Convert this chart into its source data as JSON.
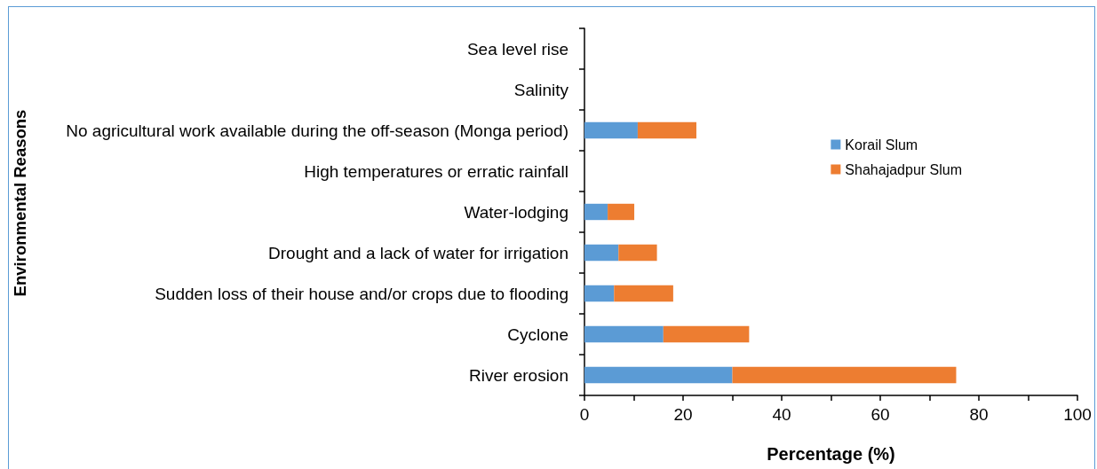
{
  "chart_data": {
    "type": "bar",
    "orientation": "horizontal",
    "stacked": true,
    "xlabel": "Percentage (%)",
    "ylabel": "Environmental Reasons",
    "categories": [
      "Sea level rise",
      "Salinity",
      "No agricultural work available during the off-season (Monga period)",
      "High temperatures or erratic rainfall",
      "Water-lodging",
      "Drought and a lack of water for irrigation",
      "Sudden loss of their house and/or crops due to flooding",
      "Cyclone",
      "River erosion"
    ],
    "series": [
      {
        "name": "Korail Slum",
        "color": "#5b9bd5",
        "values": [
          0,
          0,
          10.8,
          0,
          4.7,
          6.9,
          6,
          16,
          30
        ]
      },
      {
        "name": "Shahajadpur Slum",
        "color": "#ed7d31",
        "values": [
          0,
          0,
          11.9,
          0,
          5.4,
          7.8,
          12,
          17.4,
          45.4
        ]
      }
    ],
    "xlim": [
      0,
      100
    ],
    "xticks": [
      0,
      {
        "value": 10,
        "label": null
      },
      20,
      {
        "value": 30,
        "label": null
      },
      40,
      {
        "value": 50,
        "label": null
      },
      60,
      {
        "value": 70,
        "label": null
      },
      80,
      {
        "value": 90,
        "label": null
      },
      100
    ],
    "legend": "right",
    "grid": false
  }
}
